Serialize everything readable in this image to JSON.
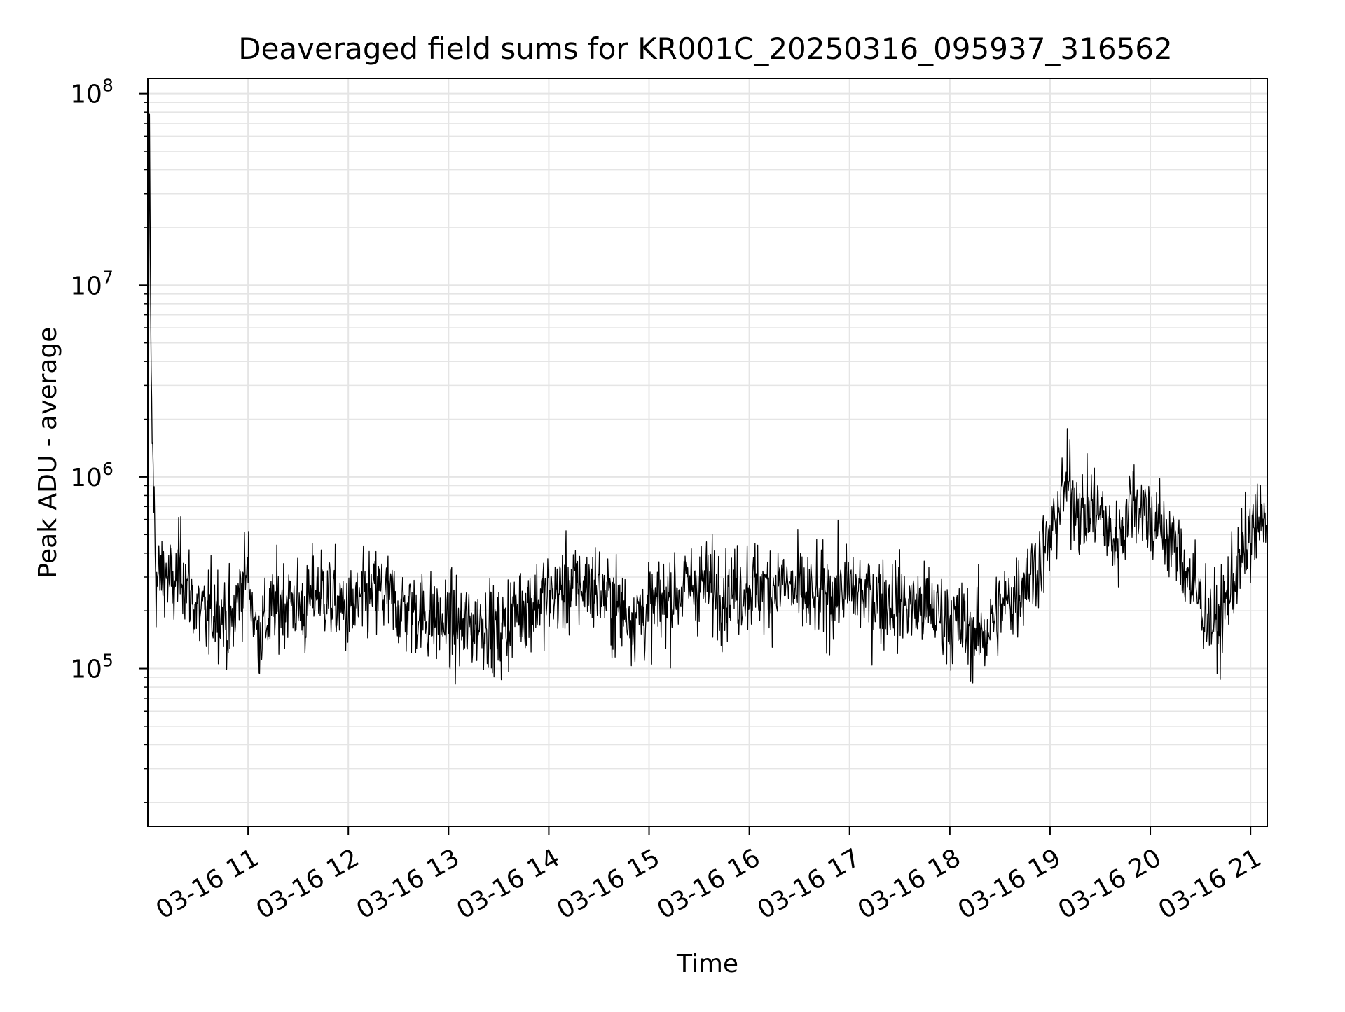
{
  "chart_data": {
    "type": "line",
    "title": "Deaveraged field sums for KR001C_20250316_095937_316562",
    "xlabel": "Time",
    "ylabel": "Peak ADU - average",
    "yscale": "log",
    "ylim": [
      15000,
      120000000
    ],
    "xlim": [
      "2025-03-16 10:00",
      "2025-03-16 21:10"
    ],
    "grid": true,
    "grid_color": "#e5e5e5",
    "line_color": "#000000",
    "x_ticks": [
      {
        "label": "03-16 11",
        "time": "2025-03-16 11:00"
      },
      {
        "label": "03-16 12",
        "time": "2025-03-16 12:00"
      },
      {
        "label": "03-16 13",
        "time": "2025-03-16 13:00"
      },
      {
        "label": "03-16 14",
        "time": "2025-03-16 14:00"
      },
      {
        "label": "03-16 15",
        "time": "2025-03-16 15:00"
      },
      {
        "label": "03-16 16",
        "time": "2025-03-16 16:00"
      },
      {
        "label": "03-16 17",
        "time": "2025-03-16 17:00"
      },
      {
        "label": "03-16 18",
        "time": "2025-03-16 18:00"
      },
      {
        "label": "03-16 19",
        "time": "2025-03-16 19:00"
      },
      {
        "label": "03-16 20",
        "time": "2025-03-16 20:00"
      },
      {
        "label": "03-16 21",
        "time": "2025-03-16 21:00"
      }
    ],
    "y_ticks": [
      {
        "base": "10",
        "exp": "5",
        "value": 100000
      },
      {
        "base": "10",
        "exp": "6",
        "value": 1000000
      },
      {
        "base": "10",
        "exp": "7",
        "value": 10000000
      },
      {
        "base": "10",
        "exp": "8",
        "value": 100000000
      }
    ],
    "series": [
      {
        "x": [
          "2025-03-16 10:00",
          "2025-03-16 10:01",
          "2025-03-16 10:02",
          "2025-03-16 10:05",
          "2025-03-16 10:10",
          "2025-03-16 10:15",
          "2025-03-16 10:20",
          "2025-03-16 10:25",
          "2025-03-16 10:30",
          "2025-03-16 10:35",
          "2025-03-16 10:40",
          "2025-03-16 10:45",
          "2025-03-16 10:50",
          "2025-03-16 10:55",
          "2025-03-16 11:00",
          "2025-03-16 11:05",
          "2025-03-16 11:10",
          "2025-03-16 11:15",
          "2025-03-16 11:20",
          "2025-03-16 11:25",
          "2025-03-16 11:30",
          "2025-03-16 11:35",
          "2025-03-16 11:40",
          "2025-03-16 11:45",
          "2025-03-16 11:50",
          "2025-03-16 11:55",
          "2025-03-16 12:00",
          "2025-03-16 12:10",
          "2025-03-16 12:20",
          "2025-03-16 12:30",
          "2025-03-16 12:40",
          "2025-03-16 12:50",
          "2025-03-16 13:00",
          "2025-03-16 13:10",
          "2025-03-16 13:20",
          "2025-03-16 13:30",
          "2025-03-16 13:40",
          "2025-03-16 13:50",
          "2025-03-16 14:00",
          "2025-03-16 14:10",
          "2025-03-16 14:20",
          "2025-03-16 14:30",
          "2025-03-16 14:40",
          "2025-03-16 14:50",
          "2025-03-16 15:00",
          "2025-03-16 15:10",
          "2025-03-16 15:20",
          "2025-03-16 15:30",
          "2025-03-16 15:40",
          "2025-03-16 15:50",
          "2025-03-16 16:00",
          "2025-03-16 16:10",
          "2025-03-16 16:20",
          "2025-03-16 16:30",
          "2025-03-16 16:40",
          "2025-03-16 16:50",
          "2025-03-16 17:00",
          "2025-03-16 17:10",
          "2025-03-16 17:20",
          "2025-03-16 17:30",
          "2025-03-16 17:40",
          "2025-03-16 17:50",
          "2025-03-16 18:00",
          "2025-03-16 18:10",
          "2025-03-16 18:20",
          "2025-03-16 18:30",
          "2025-03-16 18:40",
          "2025-03-16 18:50",
          "2025-03-16 19:00",
          "2025-03-16 19:05",
          "2025-03-16 19:10",
          "2025-03-16 19:15",
          "2025-03-16 19:20",
          "2025-03-16 19:25",
          "2025-03-16 19:30",
          "2025-03-16 19:35",
          "2025-03-16 19:40",
          "2025-03-16 19:45",
          "2025-03-16 19:50",
          "2025-03-16 19:55",
          "2025-03-16 20:00",
          "2025-03-16 20:10",
          "2025-03-16 20:20",
          "2025-03-16 20:30",
          "2025-03-16 20:40",
          "2025-03-16 20:50",
          "2025-03-16 21:00",
          "2025-03-16 21:10"
        ],
        "y": [
          300000,
          78000000,
          2500000,
          280000,
          320000,
          260000,
          350000,
          250000,
          200000,
          180000,
          210000,
          190000,
          160000,
          260000,
          320000,
          150000,
          170000,
          200000,
          220000,
          230000,
          210000,
          200000,
          260000,
          250000,
          230000,
          210000,
          190000,
          230000,
          250000,
          210000,
          200000,
          180000,
          170000,
          160000,
          180000,
          150000,
          200000,
          220000,
          240000,
          260000,
          270000,
          260000,
          210000,
          190000,
          200000,
          230000,
          260000,
          280000,
          260000,
          250000,
          270000,
          260000,
          280000,
          240000,
          230000,
          250000,
          260000,
          240000,
          230000,
          220000,
          210000,
          200000,
          180000,
          160000,
          150000,
          200000,
          250000,
          330000,
          450000,
          700000,
          900000,
          800000,
          600000,
          700000,
          650000,
          500000,
          450000,
          600000,
          800000,
          700000,
          600000,
          500000,
          350000,
          220000,
          160000,
          300000,
          500000,
          600000
        ]
      }
    ]
  }
}
